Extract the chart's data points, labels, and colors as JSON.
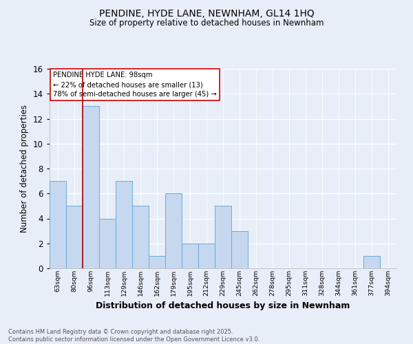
{
  "title": "PENDINE, HYDE LANE, NEWNHAM, GL14 1HQ",
  "subtitle": "Size of property relative to detached houses in Newnham",
  "xlabel": "Distribution of detached houses by size in Newnham",
  "ylabel": "Number of detached properties",
  "categories": [
    "63sqm",
    "80sqm",
    "96sqm",
    "113sqm",
    "129sqm",
    "146sqm",
    "162sqm",
    "179sqm",
    "195sqm",
    "212sqm",
    "229sqm",
    "245sqm",
    "262sqm",
    "278sqm",
    "295sqm",
    "311sqm",
    "328sqm",
    "344sqm",
    "361sqm",
    "377sqm",
    "394sqm"
  ],
  "values": [
    7,
    5,
    13,
    4,
    7,
    5,
    1,
    6,
    2,
    2,
    5,
    3,
    0,
    0,
    0,
    0,
    0,
    0,
    0,
    1,
    0
  ],
  "bar_color": "#c5d8f0",
  "bar_edge_color": "#6aaad4",
  "property_line_x": 1.5,
  "property_label": "PENDINE HYDE LANE: 98sqm",
  "annotation_line1": "← 22% of detached houses are smaller (13)",
  "annotation_line2": "78% of semi-detached houses are larger (45) →",
  "vline_color": "#aa0000",
  "ylim": [
    0,
    16
  ],
  "yticks": [
    0,
    2,
    4,
    6,
    8,
    10,
    12,
    14,
    16
  ],
  "plot_bg": "#e8eef8",
  "fig_bg": "#e8eef8",
  "footer_line1": "Contains HM Land Registry data © Crown copyright and database right 2025.",
  "footer_line2": "Contains public sector information licensed under the Open Government Licence v3.0."
}
